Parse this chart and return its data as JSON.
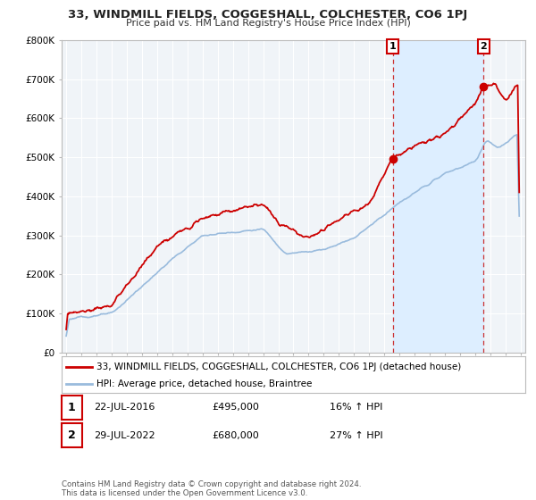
{
  "title": "33, WINDMILL FIELDS, COGGESHALL, COLCHESTER, CO6 1PJ",
  "subtitle": "Price paid vs. HM Land Registry's House Price Index (HPI)",
  "legend_property": "33, WINDMILL FIELDS, COGGESHALL, COLCHESTER, CO6 1PJ (detached house)",
  "legend_hpi": "HPI: Average price, detached house, Braintree",
  "footer": "Contains HM Land Registry data © Crown copyright and database right 2024.\nThis data is licensed under the Open Government Licence v3.0.",
  "sale1_date": "22-JUL-2016",
  "sale1_price": 495000,
  "sale1_hpi": "16% ↑ HPI",
  "sale1_year": 2016.55,
  "sale2_date": "29-JUL-2022",
  "sale2_price": 680000,
  "sale2_hpi": "27% ↑ HPI",
  "sale2_year": 2022.55,
  "ylim": [
    0,
    800000
  ],
  "xlim_start": 1994.7,
  "xlim_end": 2025.3,
  "property_color": "#cc0000",
  "hpi_color": "#99bbdd",
  "shade_color": "#ddeeff",
  "dashed_color": "#cc3333",
  "background_color": "#ffffff",
  "plot_bg_color": "#f0f4f8",
  "grid_color": "#ffffff"
}
